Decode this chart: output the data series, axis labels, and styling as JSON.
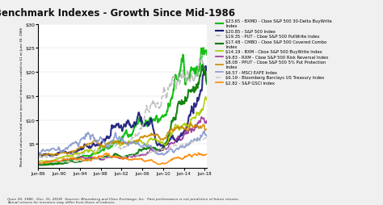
{
  "title": "Benchmark Indexes - Growth Since Mid-1986",
  "ylabel": "Month-end values for total return (pre-tax) indexes re-scaled to $1 on June 30, 1986",
  "xlabel_ticks": [
    "Jun-86",
    "Jun-90",
    "Jun-94",
    "Jun-98",
    "Jun-02",
    "Jun-06",
    "Jun-10",
    "Jun-14",
    "Jun-18"
  ],
  "ylim": [
    0,
    30
  ],
  "yticks": [
    5,
    10,
    15,
    20,
    25,
    30
  ],
  "ytick_labels": [
    "$5",
    "$10",
    "$15",
    "$20",
    "$25",
    "$30"
  ],
  "footnote1": "(June 30, 1986 - Dec. 31, 2018)  Sources: Bloomberg and Cboe Exchange, Inc.  Past performance is not predictive of future returns.",
  "footnote2": "Actual returns for investors may differ from those of indexes.",
  "legend_entries": [
    {
      "label": "$23.65 - BXMD - Cboe S&P 500 30-Delta BuyWrite\nIndex",
      "color": "#00BB00",
      "lw": 1.5,
      "ls": "-"
    },
    {
      "label": "$20.85 - S&P 500 Index",
      "color": "#1A1A7A",
      "lw": 1.5,
      "ls": "-"
    },
    {
      "label": "$19.35 - PUT - Cboe S&P 500 PutWrite Index",
      "color": "#BBBBBB",
      "lw": 1.2,
      "ls": "--"
    },
    {
      "label": "$17.48 - CMBO - Cboe S&P 500 Covered Combo\nIndex",
      "color": "#007700",
      "lw": 1.5,
      "ls": "-"
    },
    {
      "label": "$14.19 - BXM - Cboe S&P 500 BuyWrite Index",
      "color": "#AACC00",
      "lw": 1.2,
      "ls": "-"
    },
    {
      "label": "$9.83 - RXM - Cboe S&P 500 Risk Reversal Index",
      "color": "#993399",
      "lw": 1.2,
      "ls": "-"
    },
    {
      "label": "$8.08 - PPUT - Cboe S&P 500 5% Put Protection\nIndex",
      "color": "#CC8800",
      "lw": 1.2,
      "ls": "-"
    },
    {
      "label": "$6.57 - MSCI EAFE Index",
      "color": "#8899CC",
      "lw": 1.2,
      "ls": "-"
    },
    {
      "label": "$6.19 - Bloomberg Barclays US Treasury Index",
      "color": "#CCCCCC",
      "lw": 1.2,
      "ls": "--"
    },
    {
      "label": "$2.82 - S&P GSCI Index",
      "color": "#FF8800",
      "lw": 1.2,
      "ls": "-"
    }
  ],
  "background_color": "#F0F0F0",
  "plot_bg": "#FFFFFF",
  "n_months": 390,
  "tick_positions": [
    0,
    48,
    96,
    144,
    192,
    240,
    288,
    336,
    384
  ],
  "end_values": [
    23.65,
    20.85,
    19.35,
    17.48,
    14.19,
    9.83,
    8.08,
    6.57,
    6.19,
    2.82
  ],
  "vols": [
    0.036,
    0.042,
    0.033,
    0.037,
    0.032,
    0.038,
    0.026,
    0.044,
    0.013,
    0.052
  ],
  "seeds": [
    1,
    2,
    3,
    4,
    5,
    6,
    7,
    8,
    9,
    10
  ],
  "drifts": [
    0.0081,
    0.0075,
    0.0073,
    0.0071,
    0.0066,
    0.0057,
    0.0053,
    0.0048,
    0.0044,
    0.003
  ],
  "crash_sens": [
    0.55,
    1.0,
    0.58,
    0.65,
    0.55,
    0.85,
    0.4,
    1.1,
    0.1,
    1.3
  ]
}
